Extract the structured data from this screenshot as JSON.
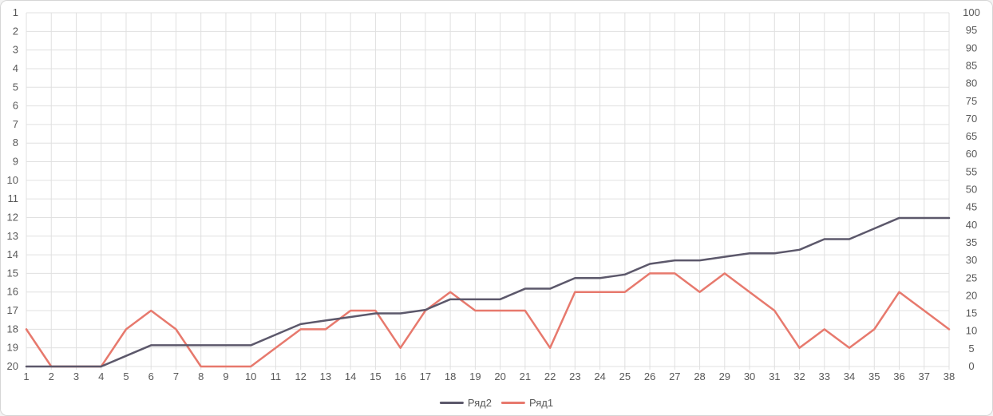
{
  "colors": {
    "series2": "#5C586B",
    "series1": "#E7796D",
    "grid": "#E0E0E0",
    "axis_text": "#595959",
    "border": "#D6D6D6",
    "background": "#FFFFFF"
  },
  "legend": {
    "position": "bottom",
    "entries": [
      "Ряд2",
      "Ряд1"
    ]
  },
  "chart_data": {
    "type": "line",
    "title": "",
    "xlabel": "",
    "ylabel": "",
    "grid": "horizontal-and-vertical",
    "legend_position": "bottom",
    "x": [
      1,
      2,
      3,
      4,
      5,
      6,
      7,
      8,
      9,
      10,
      11,
      12,
      13,
      14,
      15,
      16,
      17,
      18,
      19,
      20,
      21,
      22,
      23,
      24,
      25,
      26,
      27,
      28,
      29,
      30,
      31,
      32,
      33,
      34,
      35,
      36,
      37,
      38
    ],
    "left_axis": {
      "min": 1,
      "max": 20,
      "step": 1,
      "inverted": true,
      "ticks": [
        1,
        2,
        3,
        4,
        5,
        6,
        7,
        8,
        9,
        10,
        11,
        12,
        13,
        14,
        15,
        16,
        17,
        18,
        19,
        20
      ]
    },
    "right_axis": {
      "min": 0,
      "max": 100,
      "step": 5,
      "ticks": [
        0,
        5,
        10,
        15,
        20,
        25,
        30,
        35,
        40,
        45,
        50,
        55,
        60,
        65,
        70,
        75,
        80,
        85,
        90,
        95,
        100
      ]
    },
    "series": [
      {
        "name": "Ряд2",
        "axis": "right",
        "color": "#5C586B",
        "values": [
          0,
          0,
          0,
          0,
          3,
          6,
          6,
          6,
          6,
          6,
          9,
          12,
          13,
          14,
          15,
          15,
          16,
          19,
          19,
          19,
          22,
          22,
          25,
          25,
          26,
          29,
          30,
          30,
          31,
          32,
          32,
          33,
          36,
          36,
          39,
          42,
          42,
          42
        ]
      },
      {
        "name": "Ряд1",
        "axis": "left",
        "color": "#E7796D",
        "values": [
          18,
          20,
          20,
          20,
          18,
          17,
          18,
          20,
          20,
          20,
          19,
          18,
          18,
          17,
          17,
          19,
          17,
          16,
          17,
          17,
          17,
          19,
          16,
          16,
          16,
          15,
          15,
          16,
          15,
          16,
          17,
          19,
          18,
          19,
          18,
          16,
          17,
          18
        ]
      }
    ]
  }
}
